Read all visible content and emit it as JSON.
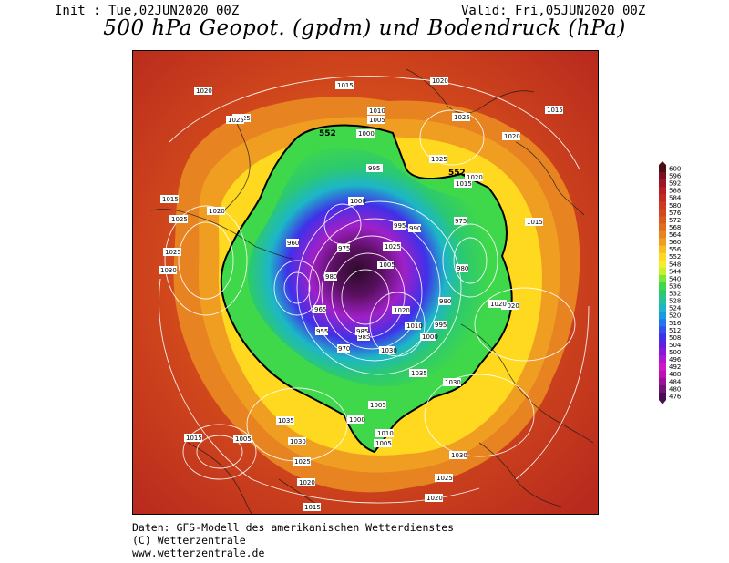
{
  "header": {
    "init": "Init : Tue,02JUN2020 00Z",
    "valid": "Valid: Fri,05JUN2020 00Z",
    "title": "500 hPa Geopot. (gpdm) und Bodendruck (hPa)"
  },
  "map": {
    "geopotential_labels": [
      "552",
      "552"
    ],
    "pressure_labels": [
      "1020",
      "1015",
      "1025",
      "1010",
      "1005",
      "1000",
      "995",
      "1020",
      "1015",
      "1020",
      "1025",
      "1015",
      "1020",
      "1025",
      "1020",
      "1025",
      "1025",
      "1015",
      "1025",
      "1030",
      "1035",
      "1030",
      "1015",
      "1020",
      "1025",
      "1005",
      "1030",
      "1035",
      "1020",
      "1015",
      "1000",
      "1005",
      "1010",
      "1005",
      "1020",
      "1030",
      "1025",
      "1020",
      "1015",
      "1000",
      "995",
      "990",
      "985",
      "980",
      "975",
      "970",
      "965",
      "960",
      "955",
      "1010",
      "1005",
      "1000",
      "995",
      "990",
      "985",
      "980",
      "975",
      "1030",
      "1025",
      "1020"
    ]
  },
  "colorbar": {
    "levels": [
      "600",
      "596",
      "592",
      "588",
      "584",
      "580",
      "576",
      "572",
      "568",
      "564",
      "560",
      "556",
      "552",
      "548",
      "544",
      "540",
      "536",
      "532",
      "528",
      "524",
      "520",
      "516",
      "512",
      "508",
      "504",
      "500",
      "496",
      "492",
      "488",
      "484",
      "480",
      "476"
    ],
    "colors": [
      "#4a0f14",
      "#7a1020",
      "#9e1528",
      "#b81e26",
      "#c42a22",
      "#cd3a1e",
      "#d24a1c",
      "#d85a1c",
      "#e06d1e",
      "#e88321",
      "#f09e22",
      "#f8bd22",
      "#ffd820",
      "#f4ee2a",
      "#c8f02e",
      "#7ae83a",
      "#3fd84a",
      "#2cc96f",
      "#24c0a0",
      "#1db6c8",
      "#1a9ae0",
      "#2376ec",
      "#3050f0",
      "#4030e8",
      "#6020e0",
      "#8a18d8",
      "#b018d0",
      "#d018c8",
      "#c010b0",
      "#9a1098",
      "#741078",
      "#4a0e52"
    ]
  },
  "footer": {
    "line1": "Daten: GFS-Modell des amerikanischen Wetterdienstes",
    "line2": "(C) Wetterzentrale",
    "line3": "www.wetterzentrale.de"
  }
}
